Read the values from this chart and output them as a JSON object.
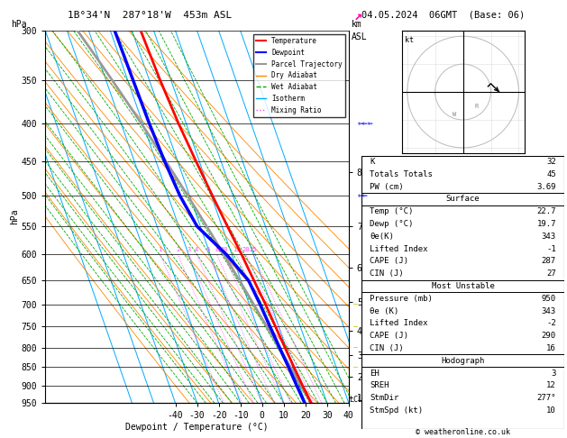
{
  "title_left": "1B°34'N  287°18'W  453m ASL",
  "title_right": "04.05.2024  06GMT  (Base: 06)",
  "xlabel": "Dewpoint / Temperature (°C)",
  "ylabel_left": "hPa",
  "background": "#ffffff",
  "pressure_ticks": [
    300,
    350,
    400,
    450,
    500,
    550,
    600,
    650,
    700,
    750,
    800,
    850,
    900,
    950
  ],
  "temp_range_min": -40,
  "temp_range_max": 40,
  "skew_factor": 0.75,
  "isotherm_color": "#00aaff",
  "dry_adiabat_color": "#ff8800",
  "wet_adiabat_color": "#00aa00",
  "mixing_ratio_color": "#ff44ff",
  "mixing_ratio_values": [
    1,
    2,
    3,
    4,
    6,
    8,
    10,
    15,
    20,
    25
  ],
  "temp_profile_temps": [
    4.0,
    5.0,
    6.5,
    8.5,
    10.5,
    12.5,
    14.5,
    16.0,
    17.5,
    18.5,
    19.5,
    20.5,
    21.5,
    22.7
  ],
  "temp_profile_pressures": [
    300,
    350,
    400,
    450,
    500,
    550,
    600,
    650,
    700,
    750,
    800,
    850,
    900,
    950
  ],
  "dewp_profile_temps": [
    -8.0,
    -7.5,
    -7.0,
    -6.0,
    -4.5,
    -1.5,
    7.5,
    13.5,
    15.0,
    16.0,
    17.0,
    18.0,
    18.8,
    19.7
  ],
  "dewp_profile_pressures": [
    300,
    350,
    400,
    450,
    500,
    550,
    600,
    650,
    700,
    750,
    800,
    850,
    900,
    950
  ],
  "lcl_pressure": 940,
  "km_asl_ticks": [
    1,
    2,
    3,
    4,
    5,
    6,
    7,
    8
  ],
  "km_asl_pressures": [
    935,
    875,
    820,
    760,
    695,
    625,
    550,
    465
  ],
  "stats_K": 32,
  "stats_TT": 45,
  "stats_PW": 3.69,
  "surf_temp": 22.7,
  "surf_dewp": 19.7,
  "surf_theta_e": 343,
  "surf_LI": -1,
  "surf_CAPE": 287,
  "surf_CIN": 27,
  "mu_pressure": 950,
  "mu_theta_e": 343,
  "mu_LI": -2,
  "mu_CAPE": 290,
  "mu_CIN": 16,
  "hodo_EH": 3,
  "hodo_SREH": 12,
  "hodo_StmDir": 277,
  "hodo_StmSpd": 10,
  "copyright": "© weatheronline.co.uk"
}
